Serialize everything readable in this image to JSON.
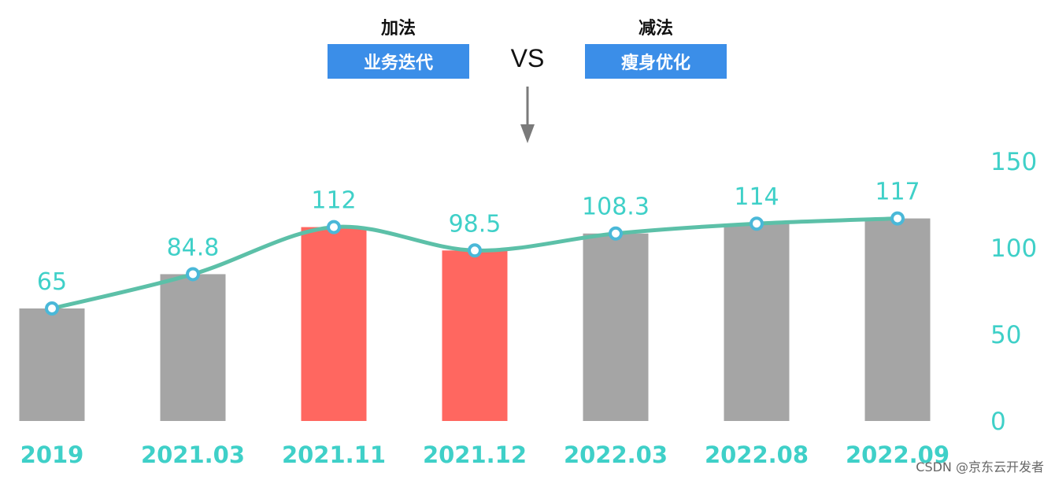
{
  "header": {
    "left_caption": "加法",
    "left_tag": "业务迭代",
    "vs_text": "VS",
    "right_caption": "减法",
    "right_tag": "瘦身优化"
  },
  "watermark": "CSDN @京东云开发者",
  "colors": {
    "bar_default": "#a5a5a5",
    "bar_highlight": "#ff6760",
    "line": "#5cc0a8",
    "marker": "#4ab8d8",
    "label_text": "#3fd0c8",
    "tag_background": "#3b8ee8",
    "arrow": "#7a7a7a"
  },
  "chart_data": {
    "type": "bar",
    "categories": [
      "2019",
      "2021.03",
      "2021.11",
      "2021.12",
      "2022.03",
      "2022.08",
      "2022.09"
    ],
    "values": [
      65,
      84.8,
      112,
      98.5,
      108.3,
      114,
      117
    ],
    "value_labels": [
      "65",
      "84.8",
      "112",
      "98.5",
      "108.3",
      "114",
      "117"
    ],
    "highlighted_categories": [
      "2021.11",
      "2021.12"
    ],
    "overlay_line": "smooth line with circle markers through the same values",
    "ylim": [
      0,
      150
    ],
    "y_ticks": [
      "0",
      "50",
      "100",
      "150"
    ],
    "y_axis_side": "right",
    "grid": false,
    "title": "",
    "xlabel": "",
    "ylabel": ""
  }
}
